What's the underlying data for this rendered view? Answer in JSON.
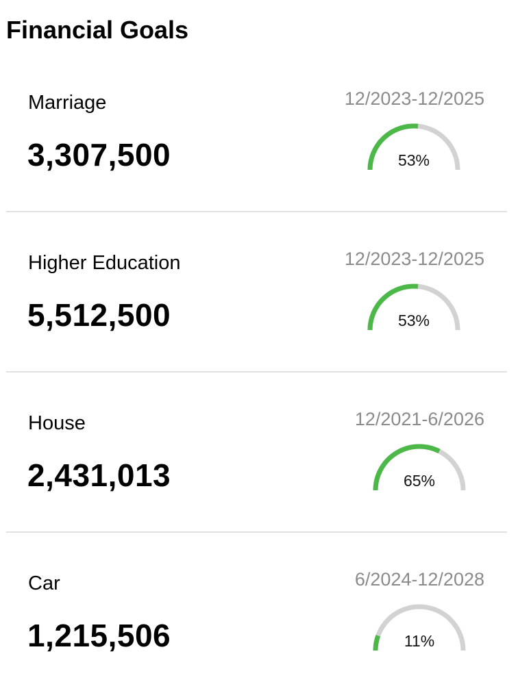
{
  "header": {
    "title": "Financial Goals"
  },
  "colors": {
    "progress": "#4cb848",
    "track": "#d2d2d2",
    "period_text": "#8a8a8a",
    "divider": "#e1e1e1"
  },
  "goals": [
    {
      "name": "Marriage",
      "amount": "3,307,500",
      "period": "12/2023-12/2025",
      "progress_label": "53%",
      "progress": 0.53
    },
    {
      "name": "Higher Education",
      "amount": "5,512,500",
      "period": "12/2023-12/2025",
      "progress_label": "53%",
      "progress": 0.53
    },
    {
      "name": "House",
      "amount": "2,431,013",
      "period": "12/2021-6/2026",
      "progress_label": "65%",
      "progress": 0.65
    },
    {
      "name": "Car",
      "amount": "1,215,506",
      "period": "6/2024-12/2028",
      "progress_label": "11%",
      "progress": 0.11
    }
  ]
}
